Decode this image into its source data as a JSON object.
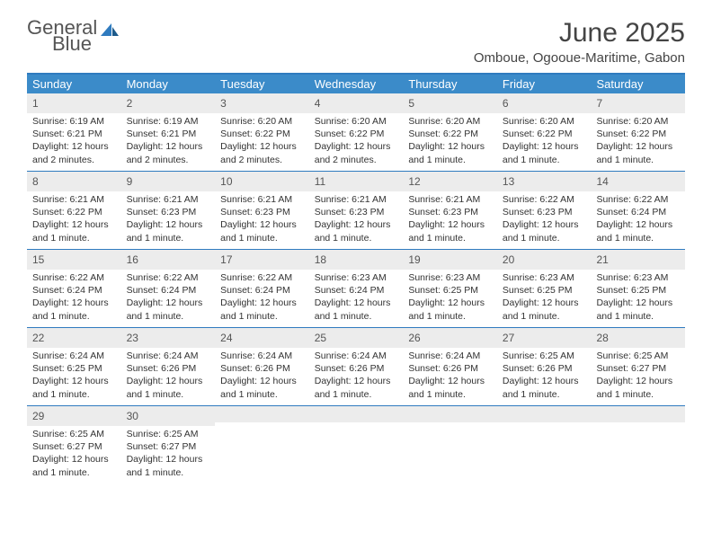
{
  "brand": {
    "line1": "General",
    "line2": "Blue"
  },
  "header": {
    "title": "June 2025",
    "location": "Omboue, Ogooue-Maritime, Gabon"
  },
  "colors": {
    "header_bar": "#3b8bc9",
    "rule": "#2f7bbf",
    "daynum_bg": "#ececec",
    "text": "#333333"
  },
  "dow": [
    "Sunday",
    "Monday",
    "Tuesday",
    "Wednesday",
    "Thursday",
    "Friday",
    "Saturday"
  ],
  "weeks": [
    [
      {
        "n": "1",
        "sr": "6:19 AM",
        "ss": "6:21 PM",
        "dl": "12 hours and 2 minutes."
      },
      {
        "n": "2",
        "sr": "6:19 AM",
        "ss": "6:21 PM",
        "dl": "12 hours and 2 minutes."
      },
      {
        "n": "3",
        "sr": "6:20 AM",
        "ss": "6:22 PM",
        "dl": "12 hours and 2 minutes."
      },
      {
        "n": "4",
        "sr": "6:20 AM",
        "ss": "6:22 PM",
        "dl": "12 hours and 2 minutes."
      },
      {
        "n": "5",
        "sr": "6:20 AM",
        "ss": "6:22 PM",
        "dl": "12 hours and 1 minute."
      },
      {
        "n": "6",
        "sr": "6:20 AM",
        "ss": "6:22 PM",
        "dl": "12 hours and 1 minute."
      },
      {
        "n": "7",
        "sr": "6:20 AM",
        "ss": "6:22 PM",
        "dl": "12 hours and 1 minute."
      }
    ],
    [
      {
        "n": "8",
        "sr": "6:21 AM",
        "ss": "6:22 PM",
        "dl": "12 hours and 1 minute."
      },
      {
        "n": "9",
        "sr": "6:21 AM",
        "ss": "6:23 PM",
        "dl": "12 hours and 1 minute."
      },
      {
        "n": "10",
        "sr": "6:21 AM",
        "ss": "6:23 PM",
        "dl": "12 hours and 1 minute."
      },
      {
        "n": "11",
        "sr": "6:21 AM",
        "ss": "6:23 PM",
        "dl": "12 hours and 1 minute."
      },
      {
        "n": "12",
        "sr": "6:21 AM",
        "ss": "6:23 PM",
        "dl": "12 hours and 1 minute."
      },
      {
        "n": "13",
        "sr": "6:22 AM",
        "ss": "6:23 PM",
        "dl": "12 hours and 1 minute."
      },
      {
        "n": "14",
        "sr": "6:22 AM",
        "ss": "6:24 PM",
        "dl": "12 hours and 1 minute."
      }
    ],
    [
      {
        "n": "15",
        "sr": "6:22 AM",
        "ss": "6:24 PM",
        "dl": "12 hours and 1 minute."
      },
      {
        "n": "16",
        "sr": "6:22 AM",
        "ss": "6:24 PM",
        "dl": "12 hours and 1 minute."
      },
      {
        "n": "17",
        "sr": "6:22 AM",
        "ss": "6:24 PM",
        "dl": "12 hours and 1 minute."
      },
      {
        "n": "18",
        "sr": "6:23 AM",
        "ss": "6:24 PM",
        "dl": "12 hours and 1 minute."
      },
      {
        "n": "19",
        "sr": "6:23 AM",
        "ss": "6:25 PM",
        "dl": "12 hours and 1 minute."
      },
      {
        "n": "20",
        "sr": "6:23 AM",
        "ss": "6:25 PM",
        "dl": "12 hours and 1 minute."
      },
      {
        "n": "21",
        "sr": "6:23 AM",
        "ss": "6:25 PM",
        "dl": "12 hours and 1 minute."
      }
    ],
    [
      {
        "n": "22",
        "sr": "6:24 AM",
        "ss": "6:25 PM",
        "dl": "12 hours and 1 minute."
      },
      {
        "n": "23",
        "sr": "6:24 AM",
        "ss": "6:26 PM",
        "dl": "12 hours and 1 minute."
      },
      {
        "n": "24",
        "sr": "6:24 AM",
        "ss": "6:26 PM",
        "dl": "12 hours and 1 minute."
      },
      {
        "n": "25",
        "sr": "6:24 AM",
        "ss": "6:26 PM",
        "dl": "12 hours and 1 minute."
      },
      {
        "n": "26",
        "sr": "6:24 AM",
        "ss": "6:26 PM",
        "dl": "12 hours and 1 minute."
      },
      {
        "n": "27",
        "sr": "6:25 AM",
        "ss": "6:26 PM",
        "dl": "12 hours and 1 minute."
      },
      {
        "n": "28",
        "sr": "6:25 AM",
        "ss": "6:27 PM",
        "dl": "12 hours and 1 minute."
      }
    ],
    [
      {
        "n": "29",
        "sr": "6:25 AM",
        "ss": "6:27 PM",
        "dl": "12 hours and 1 minute."
      },
      {
        "n": "30",
        "sr": "6:25 AM",
        "ss": "6:27 PM",
        "dl": "12 hours and 1 minute."
      },
      null,
      null,
      null,
      null,
      null
    ]
  ],
  "labels": {
    "sunrise": "Sunrise: ",
    "sunset": "Sunset: ",
    "daylight": "Daylight: "
  }
}
